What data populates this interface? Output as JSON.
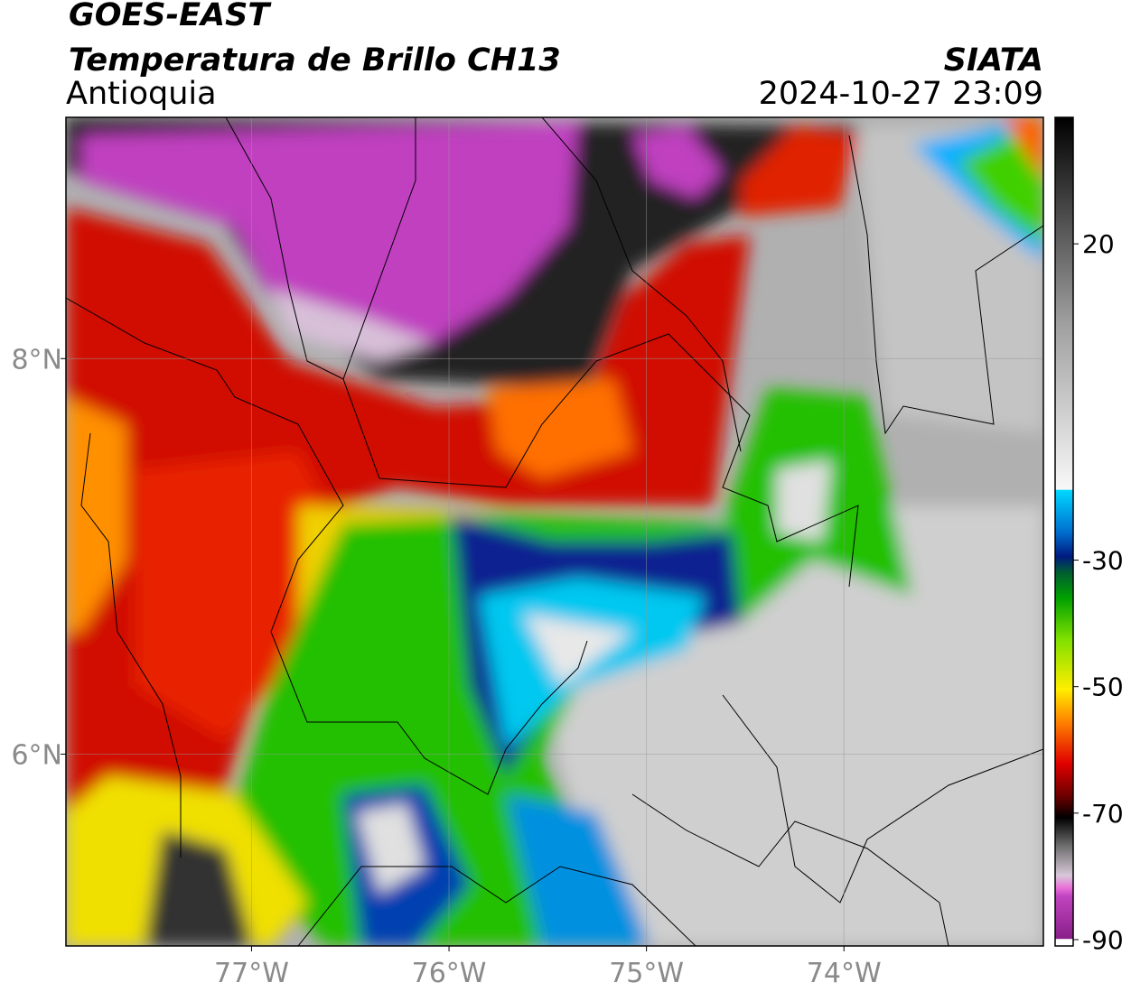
{
  "header": {
    "title": "GOES-EAST",
    "subtitle": "Temperatura de Brillo CH13",
    "region": "Antioquia",
    "source": "SIATA",
    "datetime": "2024-10-27 23:09"
  },
  "map": {
    "xlim": [
      -77.94,
      -72.99
    ],
    "ylim": [
      5.03,
      9.22
    ],
    "xticks": [
      {
        "value": -77,
        "label": "77°W"
      },
      {
        "value": -76,
        "label": "76°W"
      },
      {
        "value": -75,
        "label": "75°W"
      },
      {
        "value": -74,
        "label": "74°W"
      }
    ],
    "yticks": [
      {
        "value": 8,
        "label": "8°N"
      },
      {
        "value": 6,
        "label": "6°N"
      }
    ],
    "grid": true
  },
  "colorbar": {
    "lim": [
      -91,
      40
    ],
    "ticks": [
      20,
      -30,
      -50,
      -70,
      -90
    ]
  }
}
